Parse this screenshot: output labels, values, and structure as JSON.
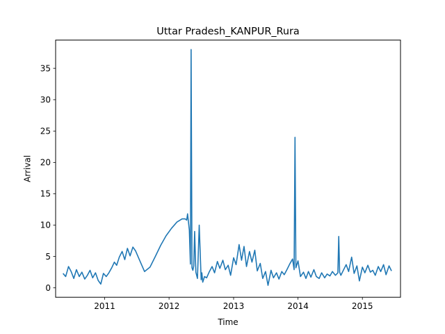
{
  "chart_data": {
    "type": "line",
    "title": "Uttar Pradesh_KANPUR_Rura",
    "xlabel": "Time",
    "ylabel": "Arrival",
    "x_ticks": [
      "2011",
      "2012",
      "2013",
      "2014",
      "2015"
    ],
    "y_ticks": [
      "0",
      "5",
      "10",
      "15",
      "20",
      "25",
      "30",
      "35"
    ],
    "xlim": [
      "2010-03-29",
      "2015-08-05"
    ],
    "ylim": [
      -1.5,
      39.5
    ],
    "grid": false,
    "color": "#1f77b4",
    "series": [
      {
        "x": [
          "2010-05-10",
          "2010-05-25",
          "2010-06-10",
          "2010-06-25",
          "2010-07-10",
          "2010-07-25",
          "2010-08-10",
          "2010-08-25",
          "2010-09-10",
          "2010-09-25",
          "2010-10-10",
          "2010-10-25",
          "2010-11-10",
          "2010-11-25",
          "2010-12-10",
          "2010-12-25",
          "2011-01-10",
          "2011-01-25",
          "2011-02-10",
          "2011-02-25",
          "2011-03-10",
          "2011-03-25",
          "2011-04-10",
          "2011-04-25",
          "2011-05-10",
          "2011-05-25",
          "2011-06-10",
          "2011-06-25",
          "2011-07-15",
          "2011-08-15",
          "2011-09-15",
          "2011-10-15",
          "2011-11-15",
          "2011-12-15",
          "2012-01-15",
          "2012-02-15",
          "2012-03-15",
          "2012-04-01",
          "2012-04-10",
          "2012-04-15",
          "2012-04-25",
          "2012-05-01",
          "2012-05-05",
          "2012-05-10",
          "2012-05-15",
          "2012-05-20",
          "2012-05-25",
          "2012-06-01",
          "2012-06-10",
          "2012-06-20",
          "2012-07-01",
          "2012-07-05",
          "2012-07-10",
          "2012-07-20",
          "2012-08-01",
          "2012-08-15",
          "2012-09-01",
          "2012-09-15",
          "2012-10-01",
          "2012-10-15",
          "2012-11-01",
          "2012-11-15",
          "2012-12-01",
          "2012-12-15",
          "2013-01-01",
          "2013-01-15",
          "2013-02-01",
          "2013-02-15",
          "2013-03-01",
          "2013-03-15",
          "2013-04-01",
          "2013-04-15",
          "2013-05-01",
          "2013-05-15",
          "2013-06-01",
          "2013-06-15",
          "2013-07-01",
          "2013-07-15",
          "2013-08-01",
          "2013-08-15",
          "2013-09-01",
          "2013-09-15",
          "2013-10-01",
          "2013-10-15",
          "2013-11-01",
          "2013-11-15",
          "2013-12-01",
          "2013-12-10",
          "2013-12-15",
          "2013-12-20",
          "2014-01-01",
          "2014-01-15",
          "2014-02-01",
          "2014-02-15",
          "2014-03-01",
          "2014-03-15",
          "2014-04-01",
          "2014-04-15",
          "2014-05-01",
          "2014-05-15",
          "2014-06-01",
          "2014-06-15",
          "2014-07-01",
          "2014-07-15",
          "2014-08-01",
          "2014-08-15",
          "2014-08-20",
          "2014-08-25",
          "2014-09-01",
          "2014-09-15",
          "2014-10-01",
          "2014-10-15",
          "2014-11-01",
          "2014-11-15",
          "2014-12-01",
          "2014-12-15",
          "2015-01-01",
          "2015-01-15",
          "2015-02-01",
          "2015-02-15",
          "2015-03-01",
          "2015-03-15",
          "2015-04-01",
          "2015-04-15",
          "2015-05-01",
          "2015-05-15",
          "2015-06-01",
          "2015-06-15"
        ],
        "y": [
          2.3,
          1.8,
          3.4,
          2.6,
          1.5,
          2.9,
          1.8,
          2.5,
          1.4,
          2.0,
          2.8,
          1.6,
          2.4,
          1.2,
          0.6,
          2.3,
          1.8,
          2.4,
          3.2,
          4.1,
          3.6,
          4.9,
          5.8,
          4.5,
          6.3,
          5.1,
          6.5,
          5.9,
          4.6,
          2.6,
          3.3,
          5.0,
          6.8,
          8.3,
          9.5,
          10.5,
          11.0,
          11.0,
          10.8,
          11.8,
          9.2,
          3.8,
          38.0,
          3.2,
          2.8,
          3.5,
          9.0,
          2.5,
          1.5,
          10.0,
          1.3,
          2.4,
          0.9,
          1.8,
          1.6,
          2.5,
          3.4,
          2.4,
          4.2,
          3.1,
          4.4,
          2.9,
          3.6,
          2.0,
          4.8,
          3.7,
          6.9,
          4.4,
          6.6,
          3.4,
          5.8,
          4.1,
          6.0,
          2.7,
          3.9,
          1.5,
          2.6,
          0.4,
          2.8,
          1.6,
          2.4,
          1.4,
          2.6,
          2.1,
          3.0,
          3.8,
          4.6,
          2.9,
          24.0,
          3.2,
          4.3,
          1.8,
          2.5,
          1.5,
          2.6,
          1.7,
          2.9,
          1.8,
          1.5,
          2.4,
          1.6,
          2.2,
          1.9,
          2.6,
          2.0,
          2.4,
          8.2,
          2.5,
          2.0,
          2.8,
          3.7,
          2.6,
          4.9,
          2.3,
          3.5,
          1.1,
          3.3,
          2.4,
          3.6,
          2.5,
          2.8,
          2.0,
          3.4,
          2.6,
          3.7,
          2.1,
          3.5,
          2.7
        ]
      }
    ]
  }
}
